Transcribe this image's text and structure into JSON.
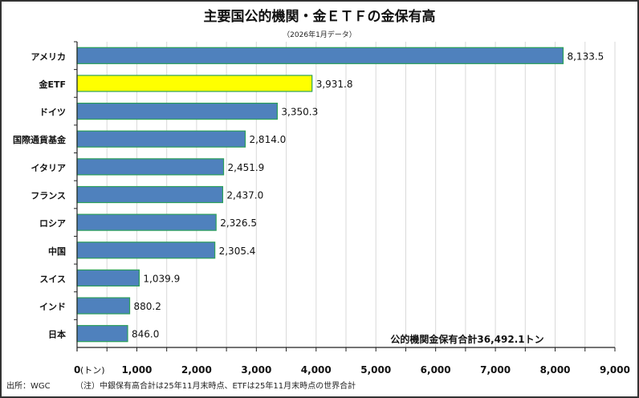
{
  "chart_data": {
    "type": "bar",
    "orientation": "horizontal",
    "title": "主要国公的機関・金ＥＴＦの金保有高",
    "subtitle": "（2026年1月データ）",
    "categories": [
      "アメリカ",
      "金ETF",
      "ドイツ",
      "国際通貨基金",
      "イタリア",
      "フランス",
      "ロシア",
      "中国",
      "スイス",
      "インド",
      "日本"
    ],
    "values": [
      8133.5,
      3931.8,
      3350.3,
      2814.0,
      2451.9,
      2437.0,
      2326.5,
      2305.4,
      1039.9,
      880.2,
      846.0
    ],
    "value_labels": [
      "8,133.5",
      "3,931.8",
      "3,350.3",
      "2,814.0",
      "2,451.9",
      "2,437.0",
      "2,326.5",
      "2,305.4",
      "1,039.9",
      "880.2",
      "846.0"
    ],
    "highlight_category": "金ETF",
    "colors": {
      "bar": "#4f81bd",
      "highlight": "#ffff00",
      "bar_border": "#2ca05a",
      "grid": "#d9d9d9"
    },
    "xlim": [
      0,
      9000
    ],
    "x_ticks": [
      "0",
      "1,000",
      "2,000",
      "3,000",
      "4,000",
      "5,000",
      "6,000",
      "7,000",
      "8,000",
      "9,000"
    ],
    "x_unit": "(トン)",
    "grid": true,
    "annotation": "公的機関金保有合計36,492.1トン"
  },
  "footer": {
    "source": "出所：WGC",
    "note": "（注）中銀保有高合計は25年11月末時点、ETFは25年11月末時点の世界合計"
  }
}
